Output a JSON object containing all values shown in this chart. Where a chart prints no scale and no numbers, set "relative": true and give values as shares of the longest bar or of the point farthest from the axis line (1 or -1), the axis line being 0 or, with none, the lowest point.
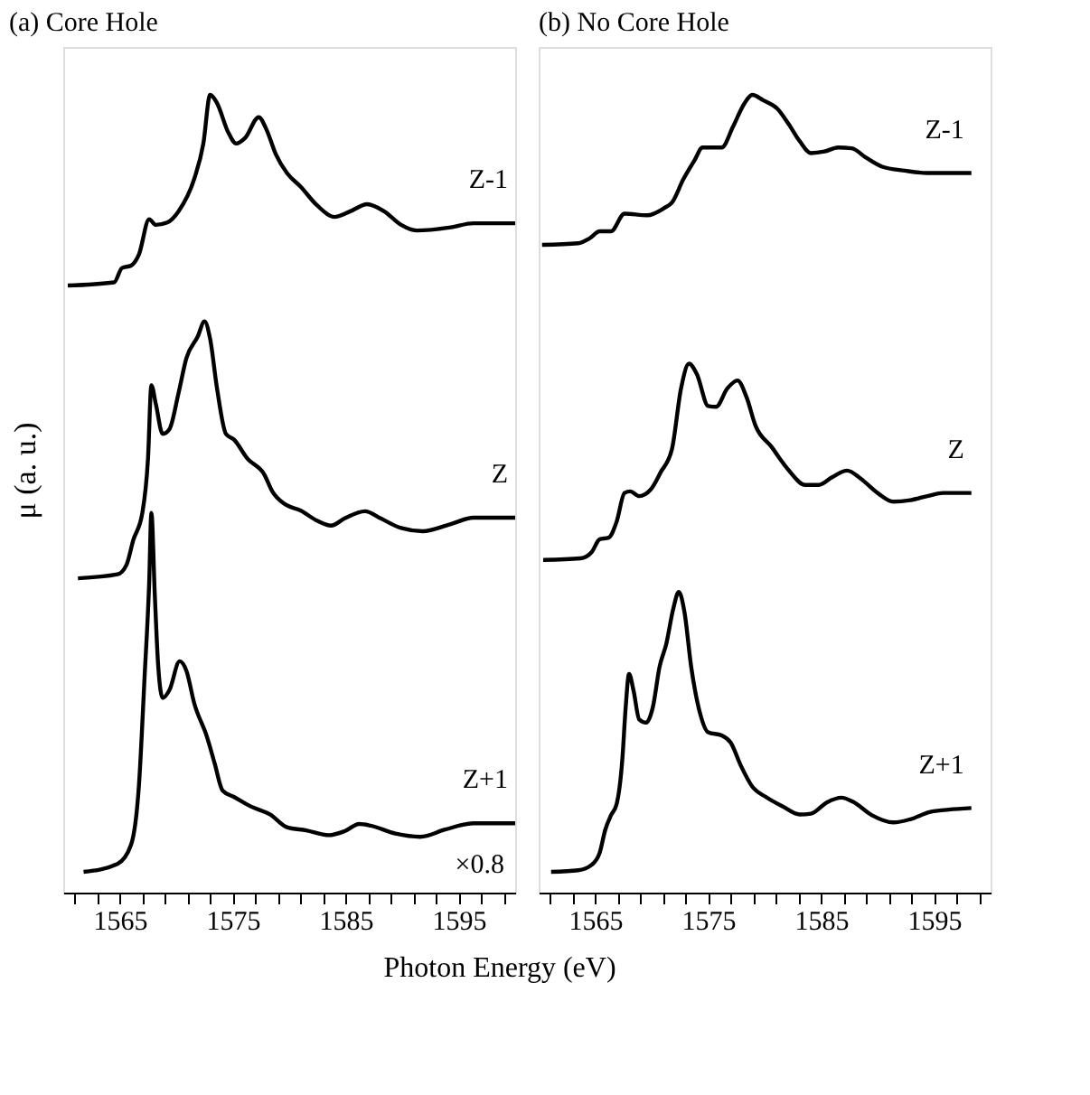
{
  "chart_data": [
    {
      "type": "line",
      "title": "(a) Core Hole",
      "ylabel": "μ (a. u.)",
      "xlabel": "Photon Energy (eV)",
      "relative": true,
      "tick_labels": "x",
      "xlim": [
        1560,
        1600
      ],
      "xticks": [
        {
          "value": 1561,
          "label": null
        },
        {
          "value": 1563,
          "label": null
        },
        1565,
        {
          "value": 1567,
          "label": null
        },
        {
          "value": 1569,
          "label": null
        },
        {
          "value": 1571,
          "label": null
        },
        {
          "value": 1573,
          "label": null
        },
        1575,
        {
          "value": 1577,
          "label": null
        },
        {
          "value": 1579,
          "label": null
        },
        {
          "value": 1581,
          "label": null
        },
        {
          "value": 1583,
          "label": null
        },
        1585,
        {
          "value": 1587,
          "label": null
        },
        {
          "value": 1589,
          "label": null
        },
        {
          "value": 1591,
          "label": null
        },
        {
          "value": 1593,
          "label": null
        },
        1595,
        {
          "value": 1597,
          "label": null
        },
        {
          "value": 1599,
          "label": null
        }
      ],
      "annotations": [
        "×0.8"
      ],
      "series": [
        {
          "name": "Z-1",
          "color": "#000000",
          "x": [
            1560.4,
            1564.5,
            1565.2,
            1566.0,
            1566.7,
            1567.6,
            1568.2,
            1569.2,
            1570.2,
            1571.6,
            1572.4,
            1573.0,
            1573.6,
            1574.6,
            1575.3,
            1576.1,
            1577.3,
            1578.0,
            1578.8,
            1579.8,
            1581.0,
            1582.5,
            1584.0,
            1585.4,
            1586.9,
            1588.4,
            1589.9,
            1591.3,
            1594.3,
            1596.3,
            1600.0
          ],
          "values": [
            0.761,
            0.765,
            0.783,
            0.786,
            0.8,
            0.844,
            0.837,
            0.84,
            0.854,
            0.895,
            0.939,
            1.0,
            0.99,
            0.953,
            0.939,
            0.946,
            0.972,
            0.956,
            0.926,
            0.902,
            0.885,
            0.861,
            0.847,
            0.854,
            0.863,
            0.854,
            0.837,
            0.83,
            0.834,
            0.839,
            0.839
          ]
        },
        {
          "name": "Z",
          "color": "#000000",
          "x": [
            1561.3,
            1564.8,
            1565.6,
            1566.2,
            1567.0,
            1567.5,
            1567.8,
            1568.2,
            1568.8,
            1569.4,
            1570.2,
            1570.9,
            1571.9,
            1572.5,
            1573.0,
            1573.6,
            1574.4,
            1575.1,
            1576.3,
            1577.8,
            1578.5,
            1579.5,
            1581.0,
            1582.5,
            1583.7,
            1584.9,
            1586.7,
            1588.1,
            1589.9,
            1591.8,
            1594.3,
            1596.3,
            1600.0
          ],
          "values": [
            0.394,
            0.399,
            0.411,
            0.442,
            0.476,
            0.544,
            0.636,
            0.612,
            0.575,
            0.581,
            0.626,
            0.67,
            0.697,
            0.716,
            0.694,
            0.633,
            0.575,
            0.568,
            0.544,
            0.524,
            0.503,
            0.488,
            0.479,
            0.466,
            0.46,
            0.469,
            0.478,
            0.469,
            0.457,
            0.453,
            0.462,
            0.47,
            0.47
          ]
        },
        {
          "name": "Z+1",
          "color": "#000000",
          "x": [
            1561.8,
            1564.8,
            1566.0,
            1566.7,
            1567.2,
            1567.6,
            1567.8,
            1568.1,
            1568.4,
            1568.8,
            1569.4,
            1570.3,
            1570.9,
            1571.6,
            1572.7,
            1573.4,
            1574.1,
            1575.1,
            1576.6,
            1578.3,
            1579.8,
            1581.5,
            1583.5,
            1584.9,
            1586.2,
            1587.2,
            1589.4,
            1591.6,
            1593.8,
            1596.3,
            1600.0
          ],
          "values": [
            0.026,
            0.036,
            0.06,
            0.135,
            0.271,
            0.387,
            0.476,
            0.374,
            0.285,
            0.244,
            0.254,
            0.29,
            0.278,
            0.237,
            0.196,
            0.162,
            0.128,
            0.12,
            0.108,
            0.098,
            0.082,
            0.078,
            0.072,
            0.077,
            0.086,
            0.084,
            0.074,
            0.07,
            0.079,
            0.087,
            0.087
          ]
        }
      ]
    },
    {
      "type": "line",
      "title": "(b) No Core Hole",
      "relative": true,
      "tick_labels": "x",
      "xlim": [
        1560,
        1600
      ],
      "xticks": [
        {
          "value": 1561,
          "label": null
        },
        {
          "value": 1563,
          "label": null
        },
        1565,
        {
          "value": 1567,
          "label": null
        },
        {
          "value": 1569,
          "label": null
        },
        {
          "value": 1571,
          "label": null
        },
        {
          "value": 1573,
          "label": null
        },
        1575,
        {
          "value": 1577,
          "label": null
        },
        {
          "value": 1579,
          "label": null
        },
        {
          "value": 1581,
          "label": null
        },
        {
          "value": 1583,
          "label": null
        },
        1585,
        {
          "value": 1587,
          "label": null
        },
        {
          "value": 1589,
          "label": null
        },
        {
          "value": 1591,
          "label": null
        },
        {
          "value": 1593,
          "label": null
        },
        1595,
        {
          "value": 1597,
          "label": null
        },
        {
          "value": 1599,
          "label": null
        }
      ],
      "series": [
        {
          "name": "Z-1",
          "color": "#000000",
          "x": [
            1560.3,
            1563.5,
            1564.5,
            1565.4,
            1566.4,
            1567.6,
            1569.6,
            1571.1,
            1571.8,
            1572.8,
            1573.8,
            1574.5,
            1575.5,
            1576.2,
            1577.2,
            1578.2,
            1578.9,
            1579.9,
            1581.1,
            1582.1,
            1583.1,
            1584.1,
            1585.3,
            1586.5,
            1587.7,
            1589.0,
            1590.4,
            1592.4,
            1594.4,
            1598.3
          ],
          "values": [
            0.812,
            0.814,
            0.82,
            0.829,
            0.829,
            0.851,
            0.849,
            0.858,
            0.865,
            0.894,
            0.918,
            0.934,
            0.934,
            0.934,
            0.96,
            0.989,
            1.0,
            0.993,
            0.983,
            0.964,
            0.942,
            0.927,
            0.929,
            0.934,
            0.933,
            0.921,
            0.91,
            0.905,
            0.902,
            0.902
          ]
        },
        {
          "name": "Z",
          "color": "#000000",
          "x": [
            1560.4,
            1563.7,
            1564.7,
            1565.4,
            1566.2,
            1566.9,
            1567.6,
            1568.1,
            1568.9,
            1569.9,
            1570.8,
            1571.8,
            1572.6,
            1573.3,
            1574.0,
            1575.0,
            1575.7,
            1576.7,
            1577.6,
            1578.4,
            1579.2,
            1580.6,
            1582.1,
            1583.6,
            1584.8,
            1586.0,
            1587.3,
            1588.5,
            1590.0,
            1591.4,
            1592.9,
            1594.4,
            1595.8,
            1598.3
          ],
          "values": [
            0.417,
            0.419,
            0.427,
            0.443,
            0.445,
            0.465,
            0.501,
            0.503,
            0.497,
            0.505,
            0.527,
            0.556,
            0.632,
            0.663,
            0.65,
            0.61,
            0.609,
            0.632,
            0.642,
            0.621,
            0.585,
            0.559,
            0.53,
            0.511,
            0.511,
            0.521,
            0.529,
            0.519,
            0.501,
            0.49,
            0.492,
            0.497,
            0.501,
            0.501
          ]
        },
        {
          "name": "Z+1",
          "color": "#000000",
          "x": [
            1561.1,
            1563.5,
            1564.7,
            1565.4,
            1565.9,
            1566.4,
            1566.9,
            1567.4,
            1567.7,
            1568.0,
            1568.4,
            1568.9,
            1569.5,
            1570.1,
            1570.7,
            1571.3,
            1571.9,
            1572.4,
            1572.9,
            1573.5,
            1574.3,
            1575.0,
            1576.2,
            1577.0,
            1577.9,
            1578.9,
            1580.1,
            1581.6,
            1583.1,
            1584.1,
            1585.5,
            1586.8,
            1587.8,
            1589.5,
            1591.4,
            1592.9,
            1594.6,
            1596.3,
            1598.3
          ],
          "values": [
            0.026,
            0.028,
            0.035,
            0.05,
            0.079,
            0.097,
            0.111,
            0.166,
            0.232,
            0.274,
            0.253,
            0.217,
            0.213,
            0.232,
            0.283,
            0.312,
            0.355,
            0.377,
            0.352,
            0.283,
            0.224,
            0.201,
            0.197,
            0.188,
            0.159,
            0.133,
            0.12,
            0.108,
            0.098,
            0.099,
            0.113,
            0.119,
            0.114,
            0.097,
            0.088,
            0.092,
            0.101,
            0.104,
            0.106
          ]
        }
      ]
    }
  ]
}
